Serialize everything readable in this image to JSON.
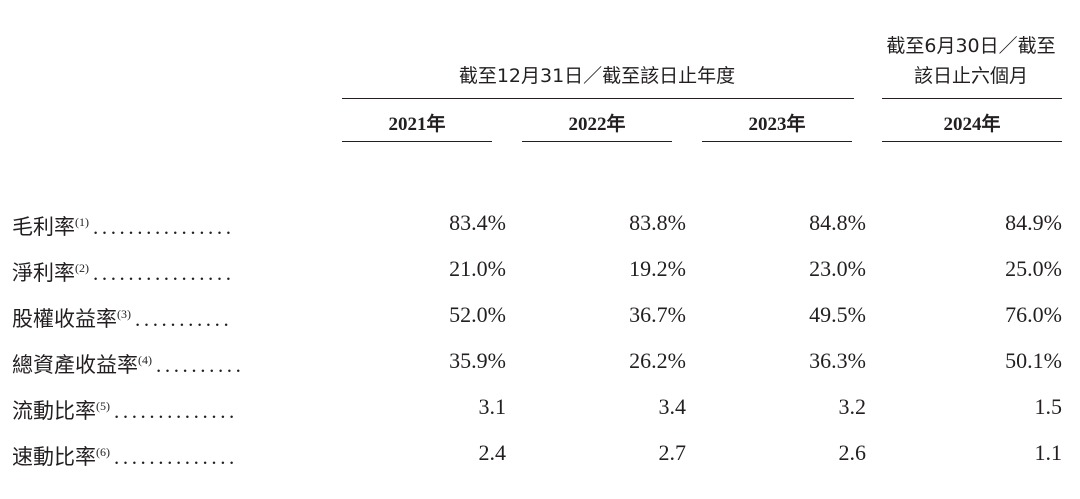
{
  "header": {
    "group_left": "截至12月31日／截至該日止年度",
    "group_right_line1": "截至6月30日／截至",
    "group_right_line2": "該日止六個月",
    "years": [
      "2021年",
      "2022年",
      "2023年",
      "2024年"
    ]
  },
  "rows": [
    {
      "label": "毛利率",
      "note": "(1)",
      "dots": "................",
      "values": [
        "83.4%",
        "83.8%",
        "84.8%",
        "84.9%"
      ]
    },
    {
      "label": "淨利率",
      "note": "(2)",
      "dots": "................",
      "values": [
        "21.0%",
        "19.2%",
        "23.0%",
        "25.0%"
      ]
    },
    {
      "label": "股權收益率",
      "note": "(3)",
      "dots": "...........",
      "values": [
        "52.0%",
        "36.7%",
        "49.5%",
        "76.0%"
      ]
    },
    {
      "label": "總資產收益率",
      "note": "(4)",
      "dots": "..........",
      "values": [
        "35.9%",
        "26.2%",
        "36.3%",
        "50.1%"
      ]
    },
    {
      "label": "流動比率",
      "note": "(5)",
      "dots": "..............",
      "values": [
        "3.1",
        "3.4",
        "3.2",
        "1.5"
      ]
    },
    {
      "label": "速動比率",
      "note": "(6)",
      "dots": "..............",
      "values": [
        "2.4",
        "2.7",
        "2.6",
        "1.1"
      ]
    }
  ]
}
